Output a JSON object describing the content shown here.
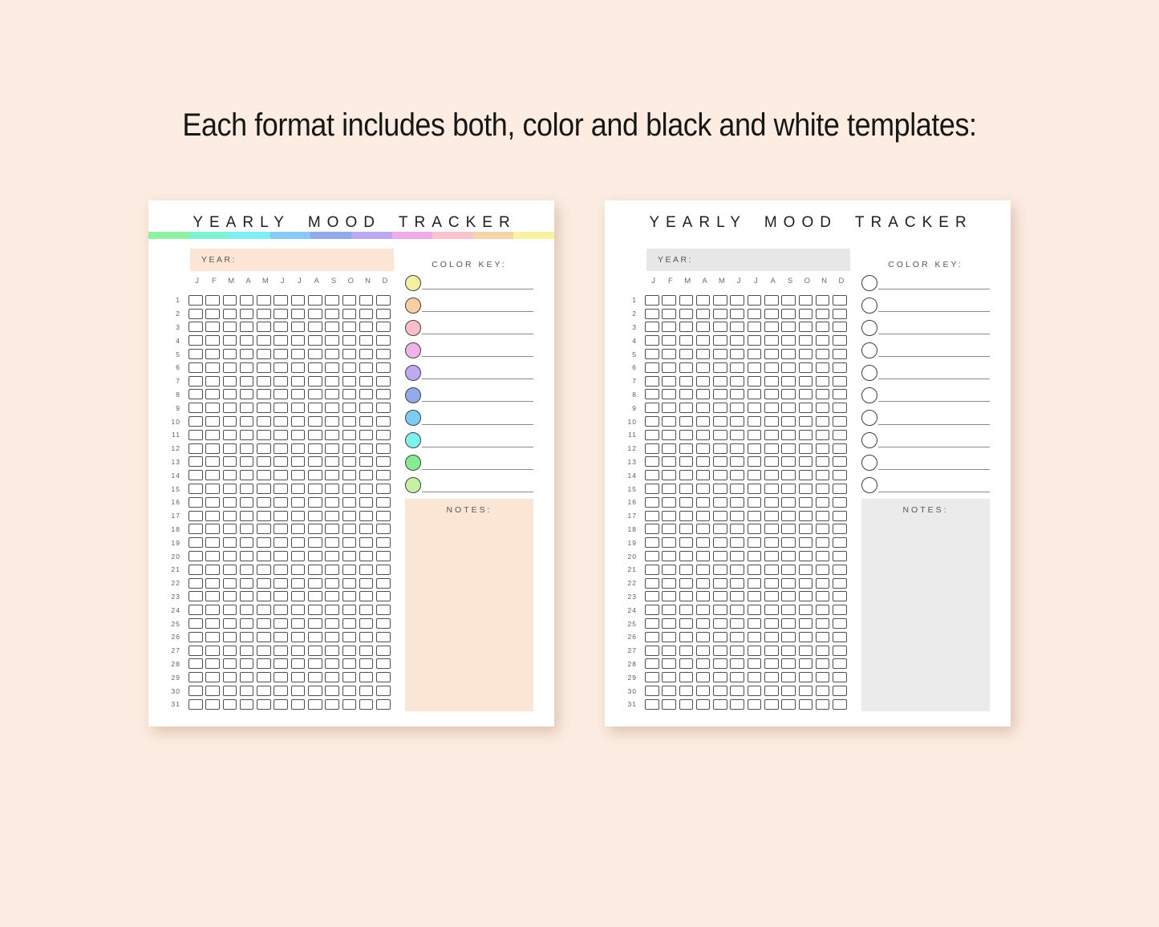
{
  "page": {
    "heading": "Each format includes both, color and black and white templates:",
    "background_color": "#fcece1"
  },
  "months": [
    "J",
    "F",
    "M",
    "A",
    "M",
    "J",
    "J",
    "A",
    "S",
    "O",
    "N",
    "D"
  ],
  "days": [
    1,
    2,
    3,
    4,
    5,
    6,
    7,
    8,
    9,
    10,
    11,
    12,
    13,
    14,
    15,
    16,
    17,
    18,
    19,
    20,
    21,
    22,
    23,
    24,
    25,
    26,
    27,
    28,
    29,
    30,
    31
  ],
  "cards": [
    {
      "variant": "color",
      "title": "YEARLY MOOD TRACKER",
      "year_label": "YEAR:",
      "color_key_label": "COLOR KEY:",
      "notes_label": "NOTES:",
      "year_box_color": "#fce5d4",
      "notes_box_color": "#fbe6d6",
      "stripe_colors": [
        "#8ff2a0",
        "#7df2d4",
        "#80eef5",
        "#89c9f4",
        "#92aae9",
        "#baa9f0",
        "#efabe7",
        "#f8c2ce",
        "#f7d3a9",
        "#f8f2a3"
      ],
      "key_circle_colors": [
        "#f4f0a3",
        "#f7cfa1",
        "#f8bfc9",
        "#f0b3e8",
        "#bfaaf0",
        "#93a9e8",
        "#7ccdf5",
        "#7df2f0",
        "#85ec93",
        "#c6f0a4"
      ]
    },
    {
      "variant": "black-and-white",
      "title": "YEARLY MOOD TRACKER",
      "year_label": "YEAR:",
      "color_key_label": "COLOR KEY:",
      "notes_label": "NOTES:",
      "year_box_color": "#e7e7e7",
      "notes_box_color": "#ebebeb",
      "stripe_colors": [],
      "key_circle_colors": [
        "#ffffff",
        "#ffffff",
        "#ffffff",
        "#ffffff",
        "#ffffff",
        "#ffffff",
        "#ffffff",
        "#ffffff",
        "#ffffff",
        "#ffffff"
      ]
    }
  ]
}
